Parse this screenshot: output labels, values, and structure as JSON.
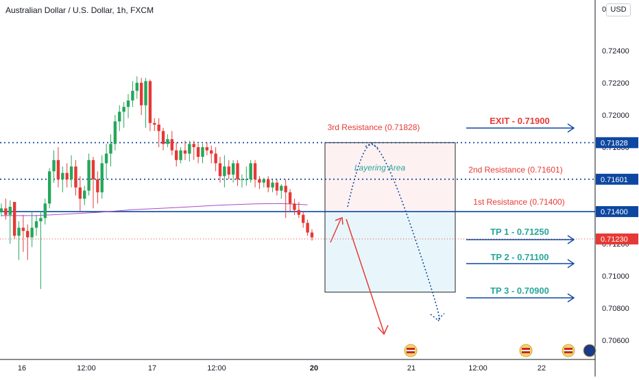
{
  "header": {
    "title": "Australian Dollar / U.S. Dollar, 1h, FXCM",
    "currency": "USD",
    "currency_prefix": "0"
  },
  "colors": {
    "up": "#26a65b",
    "down": "#e53935",
    "blue": "#0d47a1",
    "teal": "#26a69a",
    "red_text": "#e53935",
    "ma": "#a64ac9",
    "zone_pink": "#fdf1f1",
    "zone_blue": "#e8f6fb"
  },
  "chart_data": {
    "type": "candlestick",
    "y_axis": {
      "min": 0.7055,
      "max": 0.7265,
      "ticks": [
        "0.72400",
        "0.72200",
        "0.72000",
        "0.71800",
        "0.71600",
        "0.71400",
        "0.71200",
        "0.71000",
        "0.70800",
        "0.70600"
      ]
    },
    "x_axis": {
      "ticks": [
        "16",
        "12:00",
        "17",
        "12:00",
        "20",
        "21",
        "12:00",
        "22"
      ]
    },
    "candles": [
      [
        0.714,
        0.7145,
        0.7137,
        0.7142
      ],
      [
        0.7142,
        0.7148,
        0.7135,
        0.7138
      ],
      [
        0.7138,
        0.7147,
        0.712,
        0.7143
      ],
      [
        0.7146,
        0.7146,
        0.7123,
        0.7125
      ],
      [
        0.7125,
        0.7134,
        0.711,
        0.713
      ],
      [
        0.713,
        0.7138,
        0.7115,
        0.7128
      ],
      [
        0.7128,
        0.7132,
        0.711,
        0.7124
      ],
      [
        0.7124,
        0.714,
        0.7118,
        0.713
      ],
      [
        0.713,
        0.7138,
        0.7125,
        0.7134
      ],
      [
        0.7134,
        0.714,
        0.7092,
        0.7136
      ],
      [
        0.7136,
        0.7148,
        0.7132,
        0.7145
      ],
      [
        0.7145,
        0.7167,
        0.7142,
        0.7165
      ],
      [
        0.7165,
        0.7178,
        0.7158,
        0.7172
      ],
      [
        0.7172,
        0.718,
        0.7155,
        0.716
      ],
      [
        0.716,
        0.7168,
        0.7152,
        0.7164
      ],
      [
        0.7164,
        0.717,
        0.7155,
        0.716
      ],
      [
        0.716,
        0.7175,
        0.7155,
        0.7168
      ],
      [
        0.7168,
        0.7172,
        0.715,
        0.7155
      ],
      [
        0.7155,
        0.7162,
        0.714,
        0.7148
      ],
      [
        0.7148,
        0.7156,
        0.7144,
        0.7153
      ],
      [
        0.7153,
        0.7176,
        0.715,
        0.7172
      ],
      [
        0.7172,
        0.7174,
        0.7142,
        0.716
      ],
      [
        0.716,
        0.7165,
        0.7145,
        0.7152
      ],
      [
        0.7152,
        0.7175,
        0.7148,
        0.717
      ],
      [
        0.717,
        0.7182,
        0.716,
        0.7176
      ],
      [
        0.7176,
        0.7188,
        0.7168,
        0.7182
      ],
      [
        0.7182,
        0.72,
        0.7178,
        0.7196
      ],
      [
        0.7196,
        0.7206,
        0.719,
        0.7202
      ],
      [
        0.7202,
        0.7208,
        0.7192,
        0.7205
      ],
      [
        0.7205,
        0.7213,
        0.7198,
        0.7209
      ],
      [
        0.7209,
        0.7221,
        0.7205,
        0.7215
      ],
      [
        0.7215,
        0.7224,
        0.721,
        0.722
      ],
      [
        0.722,
        0.7223,
        0.72,
        0.7206
      ],
      [
        0.7206,
        0.7223,
        0.7192,
        0.7221
      ],
      [
        0.7221,
        0.7222,
        0.719,
        0.7195
      ],
      [
        0.7195,
        0.7198,
        0.719,
        0.7194
      ],
      [
        0.7194,
        0.7198,
        0.718,
        0.719
      ],
      [
        0.719,
        0.7192,
        0.7178,
        0.7182
      ],
      [
        0.7182,
        0.7188,
        0.718,
        0.7185
      ],
      [
        0.7185,
        0.719,
        0.7175,
        0.7178
      ],
      [
        0.7178,
        0.7183,
        0.7168,
        0.7172
      ],
      [
        0.7172,
        0.718,
        0.717,
        0.7178
      ],
      [
        0.7178,
        0.7184,
        0.7172,
        0.7176
      ],
      [
        0.7176,
        0.7184,
        0.7171,
        0.7182
      ],
      [
        0.7182,
        0.7184,
        0.7172,
        0.718
      ],
      [
        0.718,
        0.7182,
        0.717,
        0.7174
      ],
      [
        0.7174,
        0.7182,
        0.717,
        0.718
      ],
      [
        0.718,
        0.7183,
        0.7175,
        0.7178
      ],
      [
        0.7178,
        0.7181,
        0.717,
        0.7176
      ],
      [
        0.7176,
        0.718,
        0.7165,
        0.717
      ],
      [
        0.717,
        0.7174,
        0.7158,
        0.7162
      ],
      [
        0.7162,
        0.7175,
        0.7155,
        0.7168
      ],
      [
        0.7168,
        0.7172,
        0.716,
        0.7163
      ],
      [
        0.7163,
        0.7172,
        0.7158,
        0.717
      ],
      [
        0.717,
        0.7172,
        0.7156,
        0.716
      ],
      [
        0.716,
        0.7163,
        0.7155,
        0.716
      ],
      [
        0.716,
        0.7168,
        0.7156,
        0.716
      ],
      [
        0.716,
        0.7172,
        0.7158,
        0.717
      ],
      [
        0.717,
        0.7172,
        0.7155,
        0.716
      ],
      [
        0.716,
        0.7162,
        0.7154,
        0.7158
      ],
      [
        0.7158,
        0.7161,
        0.7155,
        0.716
      ],
      [
        0.716,
        0.7162,
        0.7152,
        0.7155
      ],
      [
        0.7155,
        0.716,
        0.7152,
        0.7158
      ],
      [
        0.7158,
        0.716,
        0.715,
        0.7153
      ],
      [
        0.7153,
        0.7157,
        0.7148,
        0.7156
      ],
      [
        0.7156,
        0.716,
        0.7136,
        0.7152
      ],
      [
        0.7152,
        0.7154,
        0.714,
        0.7145
      ],
      [
        0.7145,
        0.7148,
        0.7138,
        0.7141
      ],
      [
        0.7141,
        0.7146,
        0.7136,
        0.7138
      ],
      [
        0.7138,
        0.714,
        0.713,
        0.7133
      ],
      [
        0.7133,
        0.7135,
        0.7125,
        0.7127
      ],
      [
        0.7127,
        0.7129,
        0.7122,
        0.7124
      ]
    ],
    "ma": [
      [
        0,
        0.71375
      ],
      [
        8,
        0.71375
      ],
      [
        15,
        0.71385
      ],
      [
        22,
        0.71395
      ],
      [
        30,
        0.71412
      ],
      [
        40,
        0.71425
      ],
      [
        50,
        0.7144
      ],
      [
        58,
        0.71448
      ],
      [
        64,
        0.7145
      ],
      [
        70,
        0.71442
      ]
    ],
    "levels": [
      {
        "name": "3rd Resistance",
        "value": 0.71828,
        "label": "0.71828",
        "style": "dotted"
      },
      {
        "name": "2nd Resistance",
        "value": 0.71601,
        "label": "0.71601",
        "style": "dotted"
      },
      {
        "name": "1st Resistance",
        "value": 0.714,
        "label": "0.71400",
        "style": "solid"
      },
      {
        "name": "Current",
        "value": 0.7123,
        "label": "0.71230",
        "style": "dotted-red"
      }
    ],
    "annotations": {
      "res3_label": "3rd Resistance (0.71828)",
      "res2_label": "2nd Resistance (0.71601)",
      "res1_label": "1st Resistance (0.71400)",
      "layering": "Layering Area",
      "exit": "EXIT - 0.71900",
      "tp1": "TP 1 - 0.71250",
      "tp2": "TP 2 - 0.71100",
      "tp3": "TP 3 - 0.70900"
    }
  }
}
